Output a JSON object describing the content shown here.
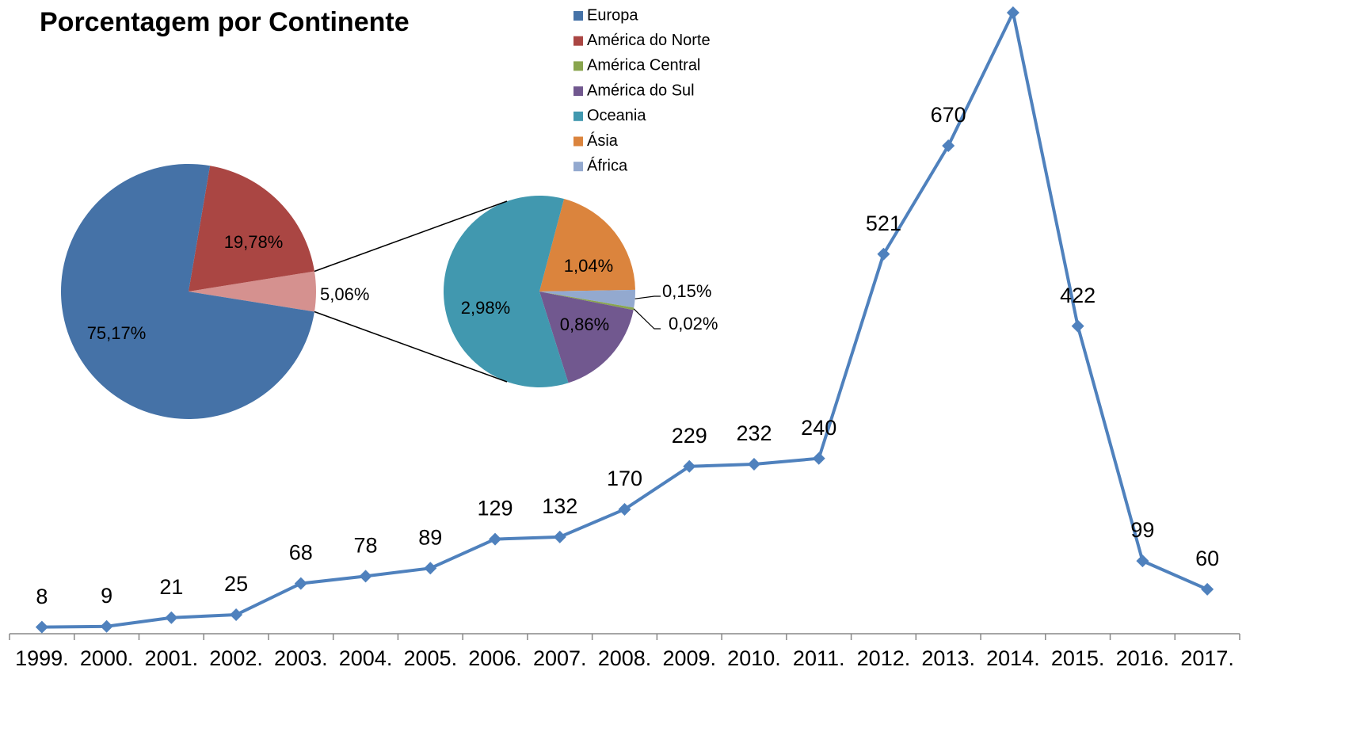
{
  "chart_data": [
    {
      "type": "line",
      "categories": [
        "1999.",
        "2000.",
        "2001.",
        "2002.",
        "2003.",
        "2004.",
        "2005.",
        "2006.",
        "2007.",
        "2008.",
        "2009.",
        "2010.",
        "2011.",
        "2012.",
        "2013.",
        "2014.",
        "2015.",
        "2016.",
        "2017."
      ],
      "values": [
        8,
        9,
        21,
        25,
        68,
        78,
        89,
        129,
        132,
        170,
        229,
        232,
        240,
        521,
        670,
        853,
        422,
        99,
        60
      ],
      "value_labels": [
        "8",
        "9",
        "21",
        "25",
        "68",
        "78",
        "89",
        "129",
        "132",
        "170",
        "229",
        "232",
        "240",
        "521",
        "670",
        null,
        "422",
        "99",
        "60"
      ],
      "color": "#4f81bd"
    },
    {
      "type": "pie-of-pie",
      "title": "Porcentagem por Continente",
      "categories": [
        "Europa",
        "América do Norte",
        "América Central",
        "América do Sul",
        "Oceania",
        "Ásia",
        "África"
      ],
      "values": [
        75.17,
        19.78,
        0.02,
        0.86,
        2.98,
        1.04,
        0.15
      ],
      "value_labels": [
        "75,17%",
        "19,78%",
        "0,02%",
        "0,86%",
        "2,98%",
        "1,04%",
        "0,15%"
      ],
      "colors": [
        "#4572a7",
        "#aa4643",
        "#89a54e",
        "#71588f",
        "#4198af",
        "#db843d",
        "#93a9cf"
      ],
      "other_value": 5.06,
      "other_label": "5,06%",
      "other_color": "#d5918f"
    }
  ]
}
